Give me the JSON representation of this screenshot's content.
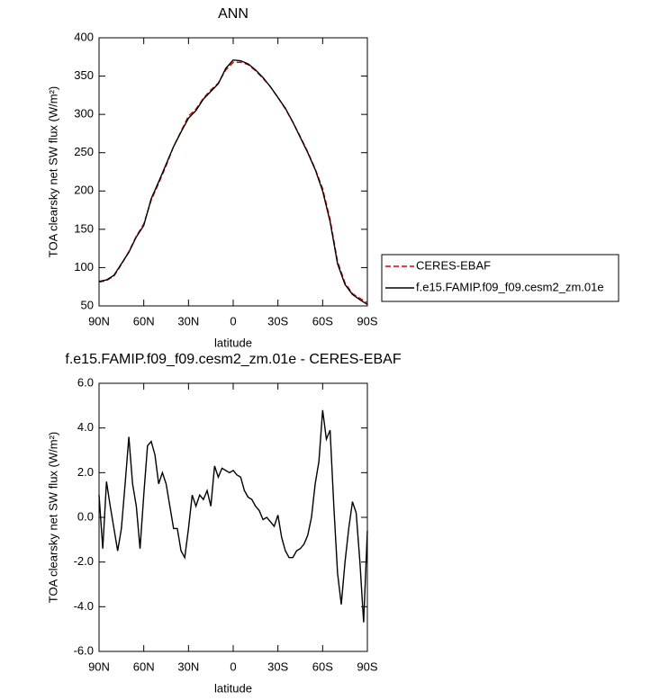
{
  "chart_data": [
    {
      "type": "line",
      "title": "ANN",
      "xlabel": "latitude",
      "ylabel": "TOA clearsky net SW flux (W/m²)",
      "x": [
        90,
        85,
        80,
        75,
        70,
        65,
        60,
        55,
        50,
        45,
        40,
        35,
        30,
        25,
        20,
        15,
        10,
        5,
        0,
        -5,
        -10,
        -15,
        -20,
        -25,
        -30,
        -35,
        -40,
        -45,
        -50,
        -55,
        -60,
        -65,
        -70,
        -75,
        -80,
        -85,
        -90
      ],
      "series": [
        {
          "name": "CERES-EBAF",
          "color": "#e00000",
          "dashed": true,
          "values": [
            81,
            83,
            89,
            104,
            121,
            141,
            157,
            188,
            210,
            233,
            258,
            278,
            298,
            307,
            321,
            332,
            341,
            358,
            368,
            368,
            365,
            357,
            347,
            336,
            322,
            307,
            290,
            271,
            251,
            229,
            203,
            163,
            108,
            80,
            66,
            60,
            54
          ]
        },
        {
          "name": "f.e15.FAMIP.f09_f09.cesm2_zm.01e",
          "color": "#000000",
          "dashed": false,
          "values": [
            82,
            84,
            90,
            105,
            120,
            140,
            155,
            190,
            212,
            235,
            258,
            277,
            295,
            305,
            320,
            330,
            340,
            360,
            371,
            370,
            366,
            358,
            348,
            336,
            322,
            308,
            290,
            270,
            250,
            228,
            200,
            160,
            105,
            78,
            65,
            58,
            52
          ]
        }
      ],
      "xlim": [
        90,
        -90
      ],
      "xticks": [
        {
          "value": 90,
          "label": "90N"
        },
        {
          "value": 60,
          "label": "60N"
        },
        {
          "value": 30,
          "label": "30N"
        },
        0,
        {
          "value": -30,
          "label": "30S"
        },
        {
          "value": -60,
          "label": "60S"
        },
        {
          "value": -90,
          "label": "90S"
        }
      ],
      "ylim": [
        50,
        400
      ],
      "yticks": [
        50,
        100,
        150,
        200,
        250,
        300,
        350,
        400
      ],
      "legend": "right"
    },
    {
      "type": "line",
      "title": "f.e15.FAMIP.f09_f09.cesm2_zm.01e - CERES-EBAF",
      "xlabel": "latitude",
      "ylabel": "TOA clearsky net SW flux (W/m²)",
      "x": [
        90,
        87.5,
        85,
        82.5,
        80,
        77.5,
        75,
        72.5,
        70,
        67.5,
        65,
        62.5,
        60,
        57.5,
        55,
        52.5,
        50,
        47.5,
        45,
        42.5,
        40,
        37.5,
        35,
        32.5,
        30,
        27.5,
        25,
        22.5,
        20,
        17.5,
        15,
        12.5,
        10,
        7.5,
        5,
        2.5,
        0,
        -2.5,
        -5,
        -7.5,
        -10,
        -12.5,
        -15,
        -17.5,
        -20,
        -22.5,
        -25,
        -27.5,
        -30,
        -32.5,
        -35,
        -37.5,
        -40,
        -42.5,
        -45,
        -47.5,
        -50,
        -52.5,
        -55,
        -57.5,
        -60,
        -62.5,
        -65,
        -67.5,
        -70,
        -72.5,
        -75,
        -77.5,
        -80,
        -82.5,
        -85,
        -87.5,
        -90
      ],
      "values": [
        1.0,
        -1.4,
        1.6,
        0.5,
        -0.5,
        -1.5,
        -0.5,
        1.5,
        3.6,
        1.5,
        0.5,
        -1.4,
        1.0,
        3.2,
        3.4,
        2.8,
        1.5,
        2.0,
        1.5,
        0.5,
        -0.5,
        -0.5,
        -1.5,
        -1.8,
        -0.5,
        1.0,
        0.5,
        1.0,
        0.8,
        1.2,
        0.5,
        2.3,
        1.8,
        2.2,
        2.1,
        2.0,
        2.1,
        1.9,
        1.8,
        1.2,
        0.9,
        0.8,
        0.5,
        0.3,
        -0.1,
        0.0,
        -0.2,
        -0.4,
        0.1,
        -0.9,
        -1.5,
        -1.8,
        -1.8,
        -1.5,
        -1.4,
        -1.2,
        -0.8,
        0.0,
        1.5,
        2.5,
        4.8,
        3.5,
        3.9,
        0.5,
        -2.5,
        -3.9,
        -2.0,
        -0.5,
        0.7,
        0.2,
        -2.0,
        -4.7,
        -0.6
      ],
      "color": "#000000",
      "xlim": [
        90,
        -90
      ],
      "xticks": [
        {
          "value": 90,
          "label": "90N"
        },
        {
          "value": 60,
          "label": "60N"
        },
        {
          "value": 30,
          "label": "30N"
        },
        0,
        {
          "value": -30,
          "label": "30S"
        },
        {
          "value": -60,
          "label": "60S"
        },
        {
          "value": -90,
          "label": "90S"
        }
      ],
      "ylim": [
        -6,
        6
      ],
      "yticks": [
        {
          "value": -6,
          "label": "-6.0"
        },
        {
          "value": -4,
          "label": "-4.0"
        },
        {
          "value": -2,
          "label": "-2.0"
        },
        {
          "value": 0,
          "label": "0.0"
        },
        {
          "value": 2,
          "label": "2.0"
        },
        {
          "value": 4,
          "label": "4.0"
        },
        {
          "value": 6,
          "label": "6.0"
        }
      ]
    }
  ]
}
